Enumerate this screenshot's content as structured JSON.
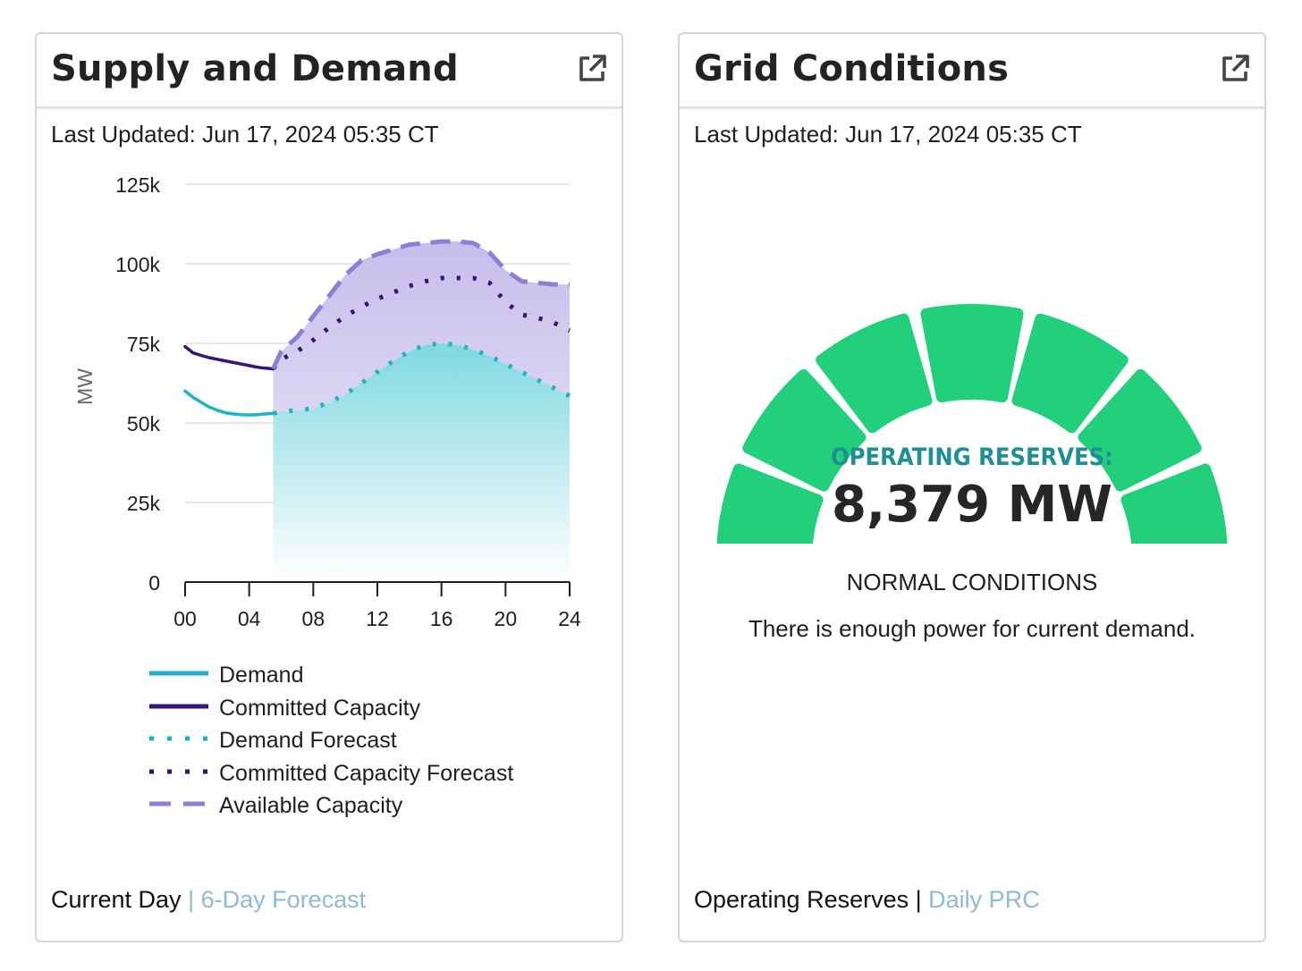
{
  "supply_demand": {
    "title": "Supply and Demand",
    "last_updated": "Last Updated: Jun 17, 2024 05:35 CT",
    "icon": "external-link-icon",
    "footer": {
      "current": "Current Day",
      "separator": "|",
      "link": "6-Day Forecast"
    }
  },
  "grid_conditions": {
    "title": "Grid Conditions",
    "last_updated": "Last Updated: Jun 17, 2024 05:35 CT",
    "icon": "external-link-icon",
    "reserves_label": "OPERATING RESERVES:",
    "reserves_value": "8,379 MW",
    "status": "NORMAL CONDITIONS",
    "status_description": "There is enough power for current demand.",
    "gauge": {
      "segments": 7,
      "color": "#22cf7b"
    },
    "footer": {
      "current": "Operating Reserves",
      "separator": "|",
      "link": "Daily PRC"
    }
  },
  "chart_data": {
    "type": "line",
    "title": "",
    "xlabel": "",
    "ylabel": "MW",
    "xlim": [
      0,
      24
    ],
    "ylim": [
      0,
      125000
    ],
    "xticks": [
      "00",
      "04",
      "08",
      "12",
      "16",
      "20",
      "24"
    ],
    "yticks": [
      "0",
      "25k",
      "50k",
      "75k",
      "100k",
      "125k"
    ],
    "grid": true,
    "legend_position": "bottom",
    "series": [
      {
        "name": "Demand",
        "style": "solid",
        "color": "#1fb1c4",
        "x": [
          0,
          0.5,
          1,
          1.5,
          2,
          2.5,
          3,
          3.5,
          4,
          4.5,
          5,
          5.5
        ],
        "y": [
          60000,
          58000,
          56500,
          55000,
          54000,
          53200,
          52800,
          52600,
          52500,
          52600,
          52800,
          53000
        ]
      },
      {
        "name": "Committed Capacity",
        "style": "solid",
        "color": "#34137a",
        "x": [
          0,
          0.5,
          1,
          1.5,
          2,
          2.5,
          3,
          3.5,
          4,
          4.5,
          5,
          5.5
        ],
        "y": [
          74000,
          72000,
          71200,
          70500,
          70000,
          69500,
          69000,
          68500,
          68000,
          67500,
          67200,
          67000
        ]
      },
      {
        "name": "Demand Forecast",
        "style": "dotted",
        "color": "#1fb1c4",
        "x": [
          5.5,
          6,
          7,
          8,
          9,
          10,
          11,
          12,
          13,
          14,
          15,
          16,
          17,
          18,
          19,
          20,
          21,
          22,
          23,
          24
        ],
        "y": [
          53000,
          53500,
          54000,
          54500,
          56500,
          59000,
          62500,
          66000,
          69500,
          72500,
          74500,
          75000,
          74500,
          73000,
          71000,
          68500,
          66000,
          63500,
          61000,
          58500
        ]
      },
      {
        "name": "Committed Capacity Forecast",
        "style": "dotted",
        "color": "#34137a",
        "x": [
          5.5,
          6,
          7,
          8,
          9,
          10,
          11,
          12,
          13,
          14,
          15,
          16,
          17,
          18,
          19,
          20,
          21,
          22,
          23,
          24
        ],
        "y": [
          67000,
          70000,
          72500,
          76000,
          80000,
          83500,
          86500,
          89000,
          91000,
          93000,
          94500,
          95500,
          95500,
          95500,
          94000,
          88000,
          84000,
          83000,
          81500,
          79000
        ]
      },
      {
        "name": "Available Capacity",
        "style": "dashed",
        "color": "#8c7fd4",
        "x": [
          5.5,
          6,
          7,
          8,
          9,
          10,
          11,
          12,
          13,
          14,
          15,
          16,
          17,
          18,
          19,
          20,
          21,
          22,
          23,
          24
        ],
        "y": [
          67000,
          72500,
          77000,
          83500,
          90000,
          96500,
          101000,
          103000,
          104500,
          106000,
          106500,
          107000,
          107000,
          106500,
          103500,
          98000,
          94500,
          94000,
          93500,
          93500
        ]
      }
    ]
  }
}
